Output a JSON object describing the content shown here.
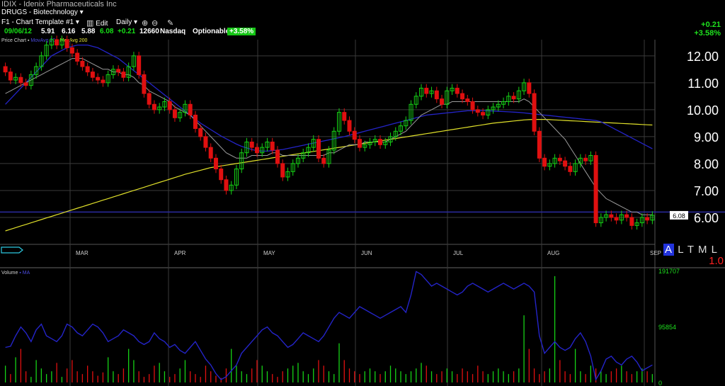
{
  "header": {
    "title": "IDIX - Idenix Pharmaceuticals Inc",
    "list_label": "DRUGS - Biotechnology",
    "template_label": "F1 - Chart Template #1",
    "edit_label": "Edit",
    "period_label": "Daily"
  },
  "quote": {
    "date": "09/06/12",
    "open": "5.91",
    "high": "6.16",
    "low": "5.88",
    "close": "6.08",
    "change": "+0.21",
    "volume": "12660",
    "exchange": "Nasdaq",
    "optionable": "Optionable",
    "pct": "+3.58%"
  },
  "change_box": {
    "abs": "+0.21",
    "pct": "+3.58%"
  },
  "legend": {
    "price": "Price Chart",
    "ma20": "MovAvg 20",
    "ma200": "MovAvg 200",
    "volume": "Volume"
  },
  "toolbar_right": {
    "letters": [
      "A",
      "L",
      "T",
      "M",
      "L"
    ],
    "scale": "1.0"
  },
  "colors": {
    "up": "#16d216",
    "down": "#e01010",
    "ma20": "#9a9a9a",
    "ma50": "#2424c8",
    "ma200": "#e0e02a",
    "grid": "#3a3a3a",
    "hline": "#2a2aa0"
  },
  "chart_data": {
    "type": "candlestick",
    "title": "IDIX - Idenix Pharmaceuticals Inc",
    "y_ticks": [
      "12.00",
      "11.00",
      "10.00",
      "9.00",
      "8.00",
      "7.00",
      "6.00"
    ],
    "ylim": [
      5.0,
      12.6
    ],
    "months": [
      "MAR",
      "APR",
      "MAY",
      "JUN",
      "JUL",
      "AUG",
      "SEP"
    ],
    "last_price_label": "6.08",
    "horizontal_line": 6.2,
    "closes": [
      11.4,
      11.1,
      11.2,
      11.0,
      10.9,
      11.3,
      11.6,
      12.0,
      12.4,
      12.6,
      12.4,
      12.6,
      12.3,
      12.1,
      11.8,
      11.6,
      11.4,
      11.2,
      11.1,
      11.0,
      11.3,
      11.5,
      11.4,
      11.2,
      11.6,
      12.0,
      11.3,
      10.6,
      10.2,
      10.0,
      10.1,
      10.3,
      10.0,
      9.7,
      9.9,
      10.2,
      9.8,
      9.3,
      9.0,
      8.6,
      8.2,
      7.8,
      7.4,
      7.0,
      7.2,
      7.8,
      8.4,
      8.8,
      8.6,
      8.4,
      8.6,
      8.8,
      8.5,
      8.0,
      7.5,
      7.7,
      8.0,
      8.2,
      8.4,
      8.6,
      8.9,
      8.2,
      8.0,
      8.5,
      9.2,
      9.9,
      9.6,
      9.2,
      8.9,
      8.6,
      8.7,
      8.8,
      8.9,
      8.7,
      8.8,
      9.0,
      9.2,
      9.4,
      9.6,
      10.2,
      10.5,
      10.8,
      10.6,
      10.7,
      10.4,
      10.2,
      10.7,
      10.8,
      10.6,
      10.4,
      10.3,
      10.0,
      9.9,
      9.8,
      10.0,
      10.1,
      10.2,
      10.3,
      10.5,
      10.4,
      10.7,
      11.0,
      10.6,
      9.2,
      8.2,
      7.9,
      8.0,
      8.2,
      8.1,
      7.9,
      7.7,
      8.0,
      8.2,
      8.1,
      8.3,
      5.8,
      6.0,
      6.1,
      6.0,
      5.9,
      6.1,
      6.0,
      5.7,
      5.8,
      6.0,
      5.9,
      6.08
    ],
    "ma20": [
      10.6,
      10.7,
      10.8,
      10.9,
      11.0,
      11.1,
      11.2,
      11.3,
      11.4,
      11.5,
      11.6,
      11.7,
      11.8,
      11.9,
      11.9,
      11.9,
      11.8,
      11.7,
      11.6,
      11.5,
      11.5,
      11.4,
      11.4,
      11.3,
      11.3,
      11.2,
      11.0,
      10.9,
      10.7,
      10.6,
      10.5,
      10.4,
      10.3,
      10.1,
      10.0,
      9.9,
      9.8,
      9.6,
      9.4,
      9.2,
      9.0,
      8.8,
      8.6,
      8.4,
      8.3,
      8.2,
      8.2,
      8.2,
      8.3,
      8.3,
      8.3,
      8.3,
      8.4,
      8.4,
      8.3,
      8.3,
      8.3,
      8.3,
      8.3,
      8.3,
      8.3,
      8.3,
      8.3,
      8.4,
      8.4,
      8.5,
      8.6,
      8.7,
      8.7,
      8.7,
      8.8,
      8.8,
      8.8,
      8.8,
      8.8,
      8.9,
      9.0,
      9.1,
      9.2,
      9.4,
      9.6,
      9.8,
      9.9,
      10.0,
      10.1,
      10.2,
      10.2,
      10.3,
      10.3,
      10.3,
      10.3,
      10.3,
      10.3,
      10.3,
      10.3,
      10.3,
      10.3,
      10.3,
      10.3,
      10.3,
      10.3,
      10.4,
      10.3,
      10.1,
      9.9,
      9.7,
      9.5,
      9.3,
      9.1,
      8.9,
      8.6,
      8.3,
      8.0,
      7.7,
      7.4,
      7.1,
      6.9,
      6.7,
      6.6,
      6.5,
      6.4,
      6.3,
      6.2,
      6.2,
      6.1,
      6.1,
      6.1
    ],
    "ma200": [
      5.5,
      5.56,
      5.62,
      5.68,
      5.74,
      5.8,
      5.86,
      5.92,
      5.98,
      6.04,
      6.1,
      6.16,
      6.22,
      6.28,
      6.34,
      6.4,
      6.46,
      6.52,
      6.58,
      6.64,
      6.7,
      6.76,
      6.82,
      6.88,
      6.94,
      7.0,
      7.06,
      7.12,
      7.18,
      7.24,
      7.3,
      7.36,
      7.42,
      7.48,
      7.54,
      7.6,
      7.65,
      7.7,
      7.75,
      7.8,
      7.85,
      7.88,
      7.91,
      7.94,
      7.97,
      8.0,
      8.03,
      8.06,
      8.09,
      8.12,
      8.15,
      8.18,
      8.21,
      8.24,
      8.27,
      8.3,
      8.33,
      8.36,
      8.39,
      8.42,
      8.45,
      8.48,
      8.51,
      8.54,
      8.57,
      8.6,
      8.63,
      8.66,
      8.69,
      8.72,
      8.75,
      8.78,
      8.81,
      8.84,
      8.87,
      8.9,
      8.93,
      8.96,
      8.99,
      9.02,
      9.05,
      9.08,
      9.11,
      9.14,
      9.17,
      9.2,
      9.23,
      9.26,
      9.29,
      9.32,
      9.35,
      9.38,
      9.41,
      9.44,
      9.47,
      9.5,
      9.52,
      9.54,
      9.56,
      9.58,
      9.6,
      9.62,
      9.63,
      9.64,
      9.64,
      9.64,
      9.63,
      9.62,
      9.61,
      9.6,
      9.59,
      9.58,
      9.57,
      9.56,
      9.55,
      9.54,
      9.53,
      9.52,
      9.51,
      9.5,
      9.49,
      9.48,
      9.47,
      9.46,
      9.45,
      9.44,
      9.43
    ],
    "ma50": [
      10.2,
      10.4,
      10.6,
      10.8,
      11.0,
      11.2,
      11.4,
      11.6,
      11.8,
      12.0,
      12.1,
      12.2,
      12.3,
      12.35,
      12.4,
      12.4,
      12.4,
      12.35,
      12.3,
      12.2,
      12.1,
      12.0,
      11.9,
      11.75,
      11.6,
      11.45,
      11.3,
      11.15,
      11.0,
      10.85,
      10.7,
      10.55,
      10.4,
      10.25,
      10.1,
      9.95,
      9.8,
      9.65,
      9.5,
      9.38,
      9.26,
      9.14,
      9.02,
      8.92,
      8.82,
      8.72,
      8.64,
      8.58,
      8.52,
      8.48,
      8.46,
      8.46,
      8.48,
      8.5,
      8.52,
      8.56,
      8.6,
      8.64,
      8.68,
      8.72,
      8.76,
      8.8,
      8.84,
      8.88,
      8.92,
      8.96,
      9.0,
      9.05,
      9.1,
      9.15,
      9.2,
      9.25,
      9.3,
      9.35,
      9.4,
      9.45,
      9.5,
      9.55,
      9.6,
      9.65,
      9.7,
      9.75,
      9.8,
      9.82,
      9.84,
      9.86,
      9.88,
      9.9,
      9.92,
      9.94,
      9.96,
      9.96,
      9.96,
      9.96,
      9.96,
      9.95,
      9.94,
      9.93,
      9.92,
      9.91,
      9.9,
      9.88,
      9.86,
      9.84,
      9.82,
      9.8,
      9.78,
      9.76,
      9.74,
      9.72,
      9.7,
      9.68,
      9.66,
      9.64,
      9.62,
      9.6,
      9.55,
      9.45,
      9.35,
      9.25,
      9.15,
      9.05,
      8.95,
      8.85,
      8.75,
      8.65,
      8.55
    ],
    "volume": {
      "y_ticks": [
        "191707",
        "95854",
        "0"
      ],
      "ylim": [
        0,
        191707
      ],
      "ma": [
        60000,
        62000,
        80000,
        95000,
        85000,
        70000,
        90000,
        100000,
        80000,
        75000,
        70000,
        80000,
        100000,
        95000,
        85000,
        80000,
        90000,
        100000,
        95000,
        85000,
        70000,
        75000,
        80000,
        90000,
        85000,
        80000,
        70000,
        65000,
        70000,
        85000,
        75000,
        70000,
        60000,
        65000,
        55000,
        50000,
        60000,
        70000,
        55000,
        40000,
        30000,
        15000,
        5000,
        10000,
        20000,
        30000,
        50000,
        60000,
        70000,
        80000,
        90000,
        95000,
        85000,
        80000,
        70000,
        60000,
        65000,
        75000,
        85000,
        80000,
        75000,
        70000,
        80000,
        95000,
        110000,
        120000,
        115000,
        110000,
        120000,
        130000,
        125000,
        120000,
        115000,
        110000,
        115000,
        120000,
        125000,
        130000,
        120000,
        150000,
        190000,
        185000,
        175000,
        165000,
        170000,
        165000,
        160000,
        155000,
        150000,
        155000,
        165000,
        170000,
        165000,
        160000,
        155000,
        160000,
        165000,
        170000,
        165000,
        160000,
        165000,
        170000,
        165000,
        155000,
        80000,
        50000,
        60000,
        70000,
        60000,
        55000,
        60000,
        75000,
        85000,
        70000,
        45000,
        5000,
        20000,
        40000,
        45000,
        35000,
        30000,
        40000,
        45000,
        35000,
        20000,
        25000,
        30000
      ],
      "bars": [
        30,
        15,
        45,
        60,
        20,
        10,
        40,
        25,
        15,
        20,
        35,
        10,
        25,
        40,
        20,
        15,
        30,
        20,
        12,
        18,
        45,
        20,
        15,
        25,
        60,
        40,
        20,
        10,
        15,
        30,
        35,
        20,
        10,
        15,
        25,
        40,
        20,
        15,
        10,
        30,
        20,
        12,
        8,
        25,
        60,
        30,
        20,
        15,
        25,
        40,
        30,
        20,
        15,
        10,
        20,
        25,
        30,
        35,
        20,
        15,
        25,
        40,
        30,
        20,
        15,
        70,
        40,
        25,
        20,
        15,
        20,
        25,
        20,
        15,
        20,
        30,
        25,
        20,
        15,
        20,
        25,
        35,
        30,
        20,
        15,
        20,
        25,
        20,
        15,
        25,
        20,
        15,
        30,
        20,
        15,
        20,
        25,
        20,
        15,
        20,
        25,
        120,
        60,
        25,
        15,
        20,
        25,
        190,
        40,
        20,
        15,
        60,
        20,
        15,
        30,
        25,
        20,
        15,
        20,
        25,
        30,
        20,
        15,
        20,
        25,
        20,
        15
      ]
    }
  }
}
